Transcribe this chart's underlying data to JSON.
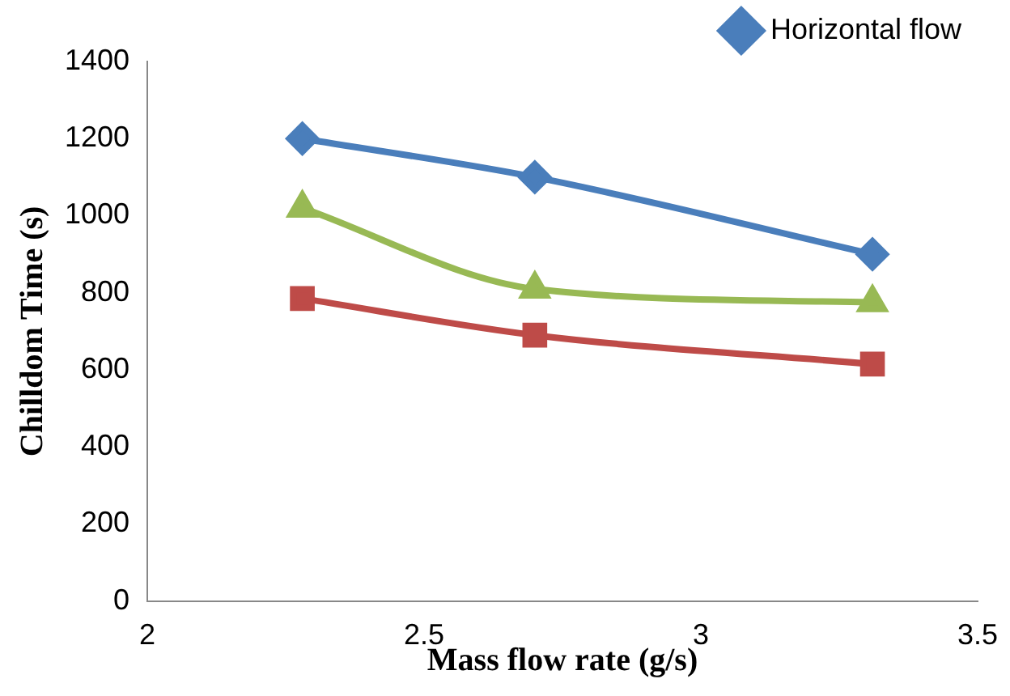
{
  "chart_data": {
    "type": "line",
    "xlabel": "Mass flow rate (g/s)",
    "ylabel": "Chilldom Time (s)",
    "xlim": [
      2,
      3.5
    ],
    "xticks": [
      2,
      2.5,
      3,
      3.5
    ],
    "ylim": [
      0,
      1400
    ],
    "yticks": [
      0,
      200,
      400,
      600,
      800,
      1000,
      1200,
      1400
    ],
    "grid": false,
    "legend": "top right",
    "series": [
      {
        "name": "Horizontal flow",
        "color": "#4a7ebb",
        "marker": "diamond",
        "x": [
          2.28,
          2.7,
          3.31
        ],
        "values": [
          1200,
          1100,
          900
        ]
      },
      {
        "color": "#98b954",
        "marker": "triangle",
        "x": [
          2.28,
          2.7,
          3.31
        ],
        "values": [
          1020,
          810,
          775
        ]
      },
      {
        "color": "#be4b48",
        "marker": "square",
        "x": [
          2.28,
          2.7,
          3.31
        ],
        "values": [
          785,
          690,
          615
        ]
      }
    ]
  }
}
